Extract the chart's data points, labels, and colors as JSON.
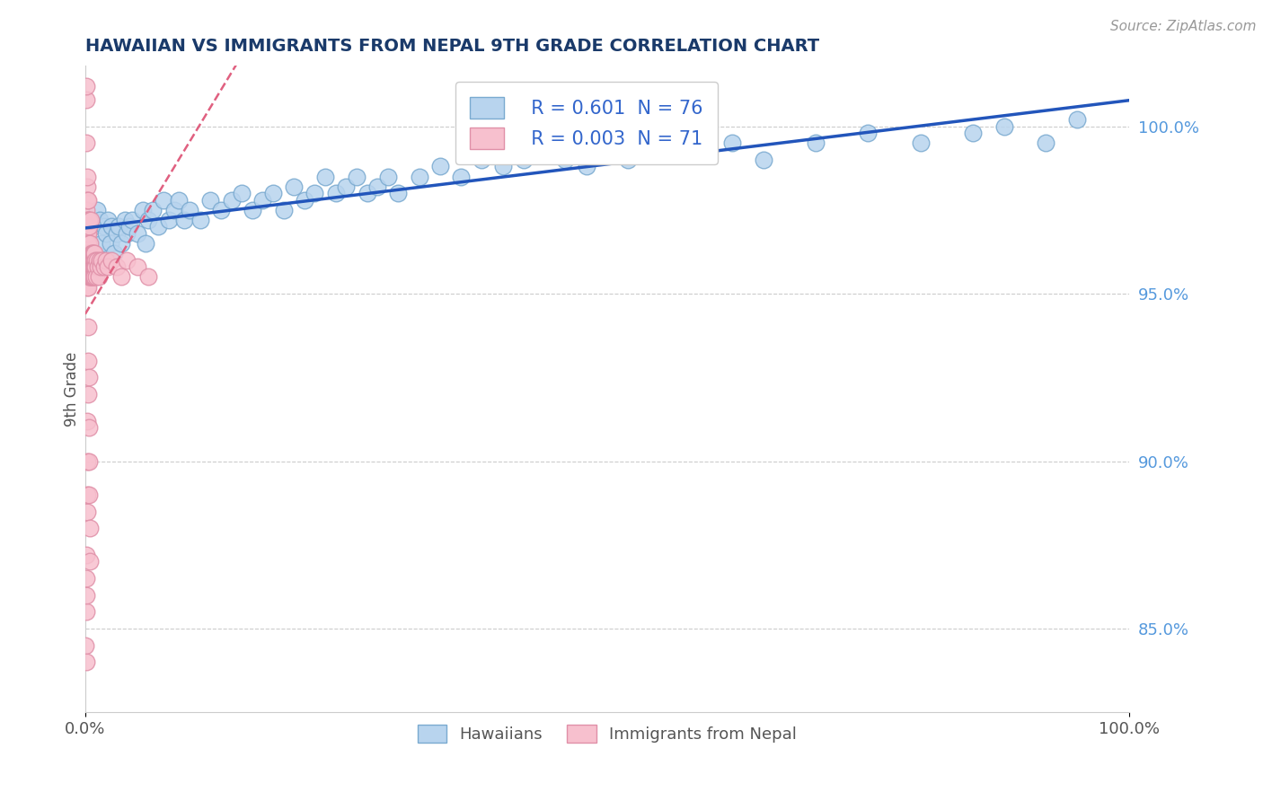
{
  "title": "HAWAIIAN VS IMMIGRANTS FROM NEPAL 9TH GRADE CORRELATION CHART",
  "source": "Source: ZipAtlas.com",
  "ylabel": "9th Grade",
  "legend_hawaiians": "Hawaiians",
  "legend_nepal": "Immigrants from Nepal",
  "R_hawaiians": 0.601,
  "N_hawaiians": 76,
  "R_nepal": 0.003,
  "N_nepal": 71,
  "hawaiians_color": "#b8d4ee",
  "nepal_color": "#f7c0ce",
  "hawaiians_edge_color": "#7aaad0",
  "nepal_edge_color": "#e090a8",
  "hawaiians_line_color": "#2255bb",
  "nepal_line_color": "#e06080",
  "title_color": "#1a3a6a",
  "source_color": "#999999",
  "right_ytick_color": "#5599dd",
  "right_yticks": [
    85.0,
    90.0,
    95.0,
    100.0
  ],
  "right_ytick_labels": [
    "85.0%",
    "90.0%",
    "95.0%",
    "100.0%"
  ],
  "ymin": 82.5,
  "ymax": 101.8,
  "xmin": 0.0,
  "xmax": 100.0,
  "hawaiians_x": [
    0.4,
    0.5,
    0.6,
    0.8,
    1.0,
    1.1,
    1.2,
    1.4,
    1.6,
    1.8,
    2.0,
    2.2,
    2.4,
    2.5,
    2.8,
    3.0,
    3.2,
    3.5,
    3.8,
    4.0,
    4.2,
    4.5,
    5.0,
    5.5,
    5.8,
    6.0,
    6.5,
    7.0,
    7.5,
    8.0,
    8.5,
    9.0,
    9.5,
    10.0,
    11.0,
    12.0,
    13.0,
    14.0,
    15.0,
    16.0,
    17.0,
    18.0,
    19.0,
    20.0,
    21.0,
    22.0,
    23.0,
    24.0,
    25.0,
    26.0,
    27.0,
    28.0,
    29.0,
    30.0,
    32.0,
    34.0,
    36.0,
    38.0,
    40.0,
    42.0,
    44.0,
    46.0,
    48.0,
    50.0,
    52.0,
    55.0,
    58.0,
    62.0,
    65.0,
    70.0,
    75.0,
    80.0,
    85.0,
    88.0,
    92.0,
    95.0
  ],
  "hawaiians_y": [
    96.5,
    97.2,
    95.8,
    97.0,
    96.2,
    97.5,
    96.0,
    97.2,
    96.5,
    97.0,
    96.8,
    97.2,
    96.5,
    97.0,
    96.2,
    96.8,
    97.0,
    96.5,
    97.2,
    96.8,
    97.0,
    97.2,
    96.8,
    97.5,
    96.5,
    97.2,
    97.5,
    97.0,
    97.8,
    97.2,
    97.5,
    97.8,
    97.2,
    97.5,
    97.2,
    97.8,
    97.5,
    97.8,
    98.0,
    97.5,
    97.8,
    98.0,
    97.5,
    98.2,
    97.8,
    98.0,
    98.5,
    98.0,
    98.2,
    98.5,
    98.0,
    98.2,
    98.5,
    98.0,
    98.5,
    98.8,
    98.5,
    99.0,
    98.8,
    99.0,
    99.2,
    99.0,
    98.8,
    99.2,
    99.0,
    99.5,
    99.2,
    99.5,
    99.0,
    99.5,
    99.8,
    99.5,
    99.8,
    100.0,
    99.5,
    100.2
  ],
  "nepal_x": [
    0.05,
    0.08,
    0.08,
    0.1,
    0.1,
    0.12,
    0.12,
    0.12,
    0.15,
    0.15,
    0.15,
    0.18,
    0.18,
    0.2,
    0.2,
    0.22,
    0.22,
    0.22,
    0.25,
    0.25,
    0.28,
    0.28,
    0.3,
    0.3,
    0.3,
    0.32,
    0.35,
    0.35,
    0.38,
    0.4,
    0.4,
    0.42,
    0.45,
    0.48,
    0.5,
    0.5,
    0.52,
    0.55,
    0.58,
    0.6,
    0.62,
    0.65,
    0.68,
    0.7,
    0.72,
    0.75,
    0.78,
    0.8,
    0.82,
    0.85,
    0.88,
    0.9,
    0.92,
    0.95,
    1.0,
    1.05,
    1.1,
    1.2,
    1.3,
    1.4,
    1.5,
    1.6,
    1.8,
    2.0,
    2.2,
    2.5,
    3.0,
    3.5,
    4.0,
    5.0,
    6.0
  ],
  "nepal_y": [
    96.5,
    97.0,
    100.8,
    95.8,
    101.2,
    96.2,
    97.5,
    99.5,
    95.5,
    96.8,
    98.2,
    96.0,
    97.2,
    96.5,
    97.8,
    95.2,
    96.8,
    98.5,
    96.0,
    97.2,
    95.5,
    96.8,
    95.2,
    96.5,
    97.8,
    95.8,
    96.2,
    97.0,
    95.5,
    96.0,
    97.2,
    95.8,
    96.5,
    95.5,
    96.0,
    97.2,
    95.5,
    96.0,
    95.8,
    96.2,
    95.5,
    96.0,
    95.8,
    96.2,
    95.5,
    96.0,
    95.8,
    96.2,
    95.5,
    96.0,
    95.8,
    96.2,
    95.5,
    96.0,
    95.8,
    95.5,
    96.0,
    95.8,
    95.5,
    96.0,
    95.8,
    96.0,
    95.8,
    96.0,
    95.8,
    96.0,
    95.8,
    95.5,
    96.0,
    95.8,
    95.5
  ],
  "nepal_outliers_x": [
    0.05,
    0.08,
    0.1,
    0.12,
    0.15,
    0.18,
    0.2,
    0.22,
    0.25,
    0.28,
    0.3,
    0.32,
    0.35,
    0.38,
    0.4,
    0.42,
    0.45,
    0.12,
    0.08
  ],
  "nepal_outliers_y": [
    84.5,
    85.5,
    86.0,
    87.2,
    88.5,
    89.0,
    90.0,
    91.2,
    92.0,
    93.0,
    94.0,
    92.5,
    91.0,
    90.0,
    89.0,
    88.0,
    87.0,
    86.5,
    84.0
  ]
}
